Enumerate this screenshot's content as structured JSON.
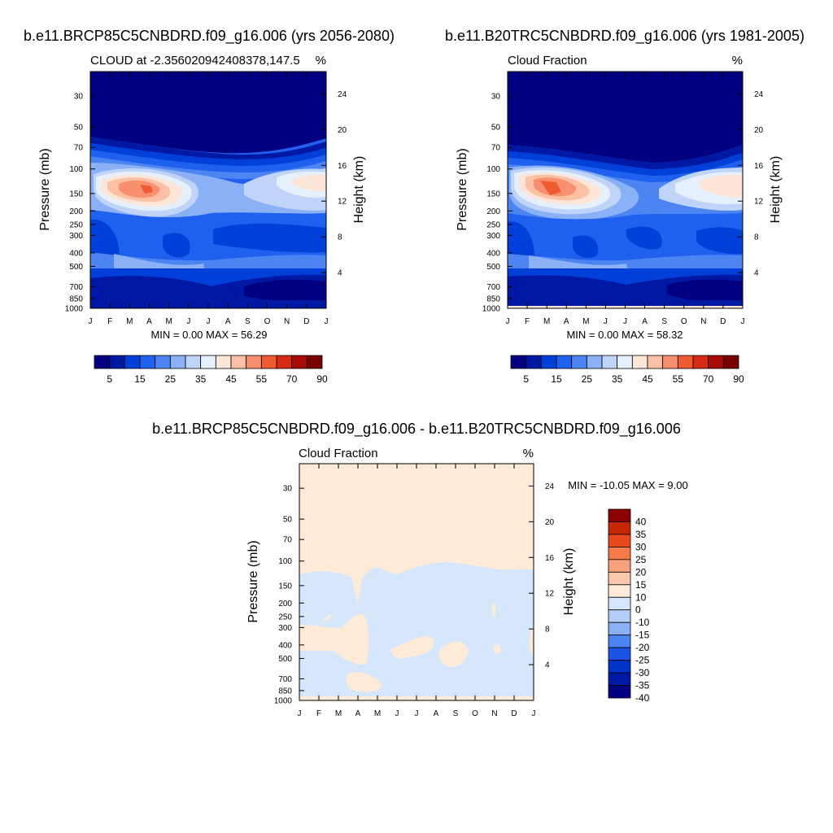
{
  "colors": {
    "scale12": [
      "#000080",
      "#0019a5",
      "#0040d8",
      "#2060ef",
      "#4c84f2",
      "#8ab0f5",
      "#c0d4fa",
      "#e6f0fc",
      "#fde6d8",
      "#fbc0a4",
      "#f89070",
      "#f05a30",
      "#d82a10",
      "#a80a05",
      "#780000"
    ],
    "diff": [
      "#000080",
      "#0019a5",
      "#0033c8",
      "#1a55e8",
      "#4c84f2",
      "#8ab0f5",
      "#b4ccf8",
      "#d6e6fb",
      "#fdebd8",
      "#fbc7ad",
      "#f8a07c",
      "#f47a4a",
      "#e84a1e",
      "#c42808",
      "#8b0000"
    ]
  },
  "panels": {
    "p1": {
      "title": "b.e11.BRCP85C5CNBDRD.f09_g16.006 (yrs 2056-2080)",
      "left_label": "CLOUD at -2.356020942408378,147.5",
      "right_label": "%",
      "minmax": "MIN =   0.00 MAX =  56.29",
      "ylabel": "Pressure (mb)",
      "y2label": "Height (km)"
    },
    "p2": {
      "title": "b.e11.B20TRC5CNBDRD.f09_g16.006 (yrs 1981-2005)",
      "left_label": "Cloud Fraction",
      "right_label": "%",
      "minmax": "MIN =   0.00 MAX =  58.32",
      "ylabel": "Pressure (mb)",
      "y2label": "Height (km)"
    },
    "p3": {
      "title": "b.e11.BRCP85C5CNBDRD.f09_g16.006 - b.e11.B20TRC5CNBDRD.f09_g16.006",
      "left_label": "Cloud Fraction",
      "right_label": "%",
      "minmax": "MIN = -10.05 MAX =   9.00",
      "ylabel": "Pressure (mb)",
      "y2label": "Height (km)"
    }
  },
  "chart_data": [
    {
      "type": "heatmap",
      "title": "b.e11.BRCP85C5CNBDRD.f09_g16.006 (yrs 2056-2080)",
      "variable": "CLOUD at -2.356020942408378,147.5",
      "units": "%",
      "x_ticks": [
        "J",
        "F",
        "M",
        "A",
        "M",
        "J",
        "J",
        "A",
        "S",
        "O",
        "N",
        "D",
        "J"
      ],
      "y_ticks": [
        30,
        50,
        70,
        100,
        150,
        200,
        250,
        300,
        400,
        500,
        700,
        850,
        1000
      ],
      "y_scale": "log",
      "y_range": [
        1000,
        20
      ],
      "y2_ticks": [
        4,
        8,
        12,
        16,
        20,
        24
      ],
      "contour_levels": [
        5,
        10,
        15,
        20,
        25,
        30,
        35,
        40,
        45,
        50,
        55,
        60,
        70,
        80,
        90
      ],
      "colorbar_labels": [
        "5",
        "15",
        "25",
        "35",
        "45",
        "55",
        "70",
        "90"
      ],
      "min": 0.0,
      "max": 56.29
    },
    {
      "type": "heatmap",
      "title": "b.e11.B20TRC5CNBDRD.f09_g16.006 (yrs 1981-2005)",
      "variable": "Cloud Fraction",
      "units": "%",
      "x_ticks": [
        "J",
        "F",
        "M",
        "A",
        "M",
        "J",
        "J",
        "A",
        "S",
        "O",
        "N",
        "D",
        "J"
      ],
      "y_ticks": [
        30,
        50,
        70,
        100,
        150,
        200,
        250,
        300,
        400,
        500,
        700,
        850,
        1000
      ],
      "y_scale": "log",
      "y_range": [
        1000,
        20
      ],
      "y2_ticks": [
        4,
        8,
        12,
        16,
        20,
        24
      ],
      "contour_levels": [
        5,
        10,
        15,
        20,
        25,
        30,
        35,
        40,
        45,
        50,
        55,
        60,
        70,
        80,
        90
      ],
      "colorbar_labels": [
        "5",
        "15",
        "25",
        "35",
        "45",
        "55",
        "70",
        "90"
      ],
      "min": 0.0,
      "max": 58.32
    },
    {
      "type": "heatmap",
      "title": "b.e11.BRCP85C5CNBDRD.f09_g16.006 - b.e11.B20TRC5CNBDRD.f09_g16.006",
      "variable": "Cloud Fraction",
      "units": "%",
      "x_ticks": [
        "J",
        "F",
        "M",
        "A",
        "M",
        "J",
        "J",
        "A",
        "S",
        "O",
        "N",
        "D",
        "J"
      ],
      "y_ticks": [
        30,
        50,
        70,
        100,
        150,
        200,
        250,
        300,
        400,
        500,
        700,
        850,
        1000
      ],
      "y_scale": "log",
      "y_range": [
        1000,
        20
      ],
      "y2_ticks": [
        4,
        8,
        12,
        16,
        20,
        24
      ],
      "contour_levels": [
        -40,
        -35,
        -30,
        -25,
        -20,
        -15,
        -10,
        0,
        10,
        15,
        20,
        25,
        30,
        35,
        40
      ],
      "colorbar_labels": [
        "40",
        "35",
        "30",
        "25",
        "20",
        "15",
        "10",
        "0",
        "-10",
        "-15",
        "-20",
        "-25",
        "-30",
        "-35",
        "-40"
      ],
      "min": -10.05,
      "max": 9.0
    }
  ]
}
